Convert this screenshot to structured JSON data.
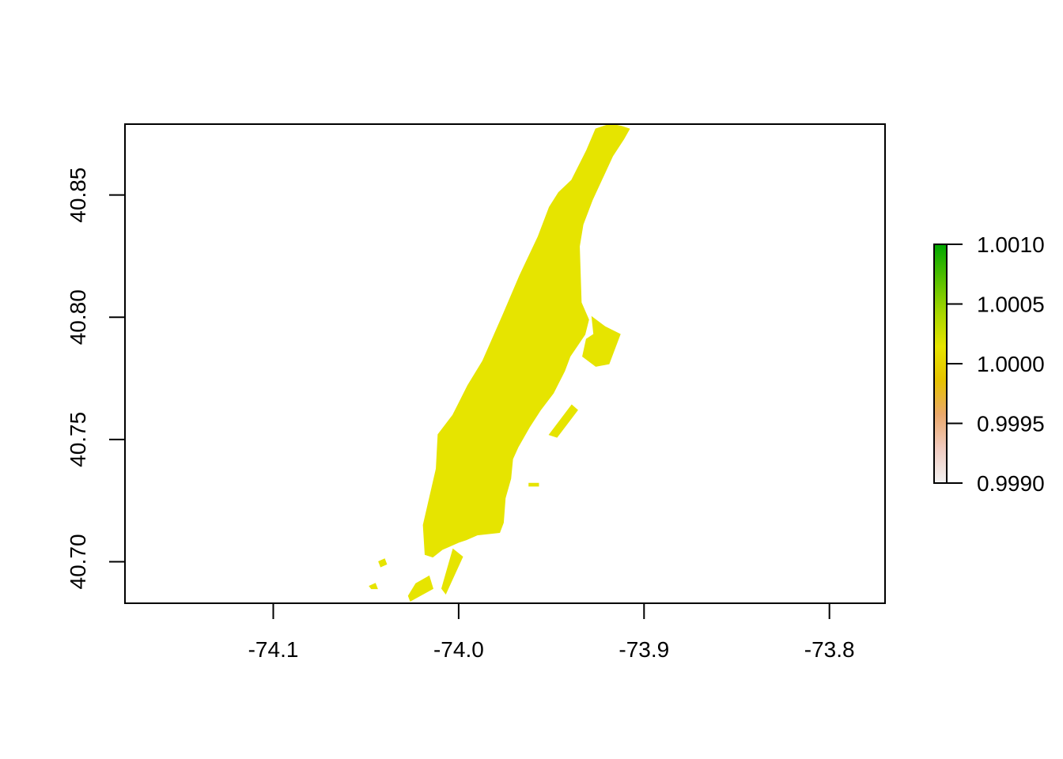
{
  "x_axis": {
    "ticks": [
      {
        "value": -74.1,
        "label": "-74.1"
      },
      {
        "value": -74.0,
        "label": "-74.0"
      },
      {
        "value": -73.9,
        "label": "-73.9"
      },
      {
        "value": -73.8,
        "label": "-73.8"
      }
    ],
    "range": [
      -74.18,
      -73.77
    ]
  },
  "y_axis": {
    "ticks": [
      {
        "value": 40.7,
        "label": "40.70"
      },
      {
        "value": 40.75,
        "label": "40.75"
      },
      {
        "value": 40.8,
        "label": "40.80"
      },
      {
        "value": 40.85,
        "label": "40.85"
      }
    ],
    "range": [
      40.683,
      40.879
    ]
  },
  "raster": {
    "fill_color": "#E6E400",
    "value": 1.0,
    "regions": [
      {
        "name": "manhattan",
        "coords": [
          [
            -73.912,
            40.878
          ],
          [
            -73.908,
            40.877
          ],
          [
            -73.911,
            40.873
          ],
          [
            -73.917,
            40.866
          ],
          [
            -73.928,
            40.848
          ],
          [
            -73.933,
            40.838
          ],
          [
            -73.935,
            40.829
          ],
          [
            -73.934,
            40.806
          ],
          [
            -73.93,
            40.799
          ],
          [
            -73.932,
            40.793
          ],
          [
            -73.94,
            40.784
          ],
          [
            -73.943,
            40.778
          ],
          [
            -73.949,
            40.769
          ],
          [
            -73.956,
            40.762
          ],
          [
            -73.962,
            40.755
          ],
          [
            -73.968,
            40.747
          ],
          [
            -73.971,
            40.742
          ],
          [
            -73.972,
            40.734
          ],
          [
            -73.975,
            40.726
          ],
          [
            -73.976,
            40.716
          ],
          [
            -73.978,
            40.712
          ],
          [
            -73.99,
            40.711
          ],
          [
            -73.996,
            40.709
          ],
          [
            -74.0,
            40.708
          ],
          [
            -74.009,
            40.705
          ],
          [
            -74.014,
            40.702
          ],
          [
            -74.018,
            40.703
          ],
          [
            -74.019,
            40.715
          ],
          [
            -74.012,
            40.738
          ],
          [
            -74.011,
            40.752
          ],
          [
            -74.003,
            40.76
          ],
          [
            -73.995,
            40.772
          ],
          [
            -73.987,
            40.782
          ],
          [
            -73.976,
            40.801
          ],
          [
            -73.967,
            40.817
          ],
          [
            -73.957,
            40.833
          ],
          [
            -73.951,
            40.845
          ],
          [
            -73.946,
            40.851
          ],
          [
            -73.939,
            40.856
          ],
          [
            -73.931,
            40.868
          ],
          [
            -73.926,
            40.877
          ],
          [
            -73.918,
            40.879
          ]
        ]
      },
      {
        "name": "roosevelt-island",
        "coords": [
          [
            -73.939,
            40.764
          ],
          [
            -73.951,
            40.752
          ],
          [
            -73.947,
            40.751
          ],
          [
            -73.936,
            40.762
          ]
        ]
      },
      {
        "name": "randalls-island",
        "coords": [
          [
            -73.928,
            40.8
          ],
          [
            -73.921,
            40.796
          ],
          [
            -73.913,
            40.793
          ],
          [
            -73.919,
            40.781
          ],
          [
            -73.926,
            40.78
          ],
          [
            -73.933,
            40.784
          ],
          [
            -73.931,
            40.791
          ],
          [
            -73.927,
            40.793
          ]
        ]
      },
      {
        "name": "governors-island",
        "coords": [
          [
            -74.026,
            40.684
          ],
          [
            -74.014,
            40.689
          ],
          [
            -74.016,
            40.694
          ],
          [
            -74.023,
            40.691
          ],
          [
            -74.027,
            40.686
          ]
        ]
      },
      {
        "name": "ellis-island",
        "coords": [
          [
            -74.042,
            40.698
          ],
          [
            -74.039,
            40.699
          ],
          [
            -74.04,
            40.701
          ],
          [
            -74.043,
            40.7
          ]
        ]
      },
      {
        "name": "liberty-island",
        "coords": [
          [
            -74.047,
            40.689
          ],
          [
            -74.044,
            40.689
          ],
          [
            -74.045,
            40.691
          ],
          [
            -74.048,
            40.69
          ]
        ]
      },
      {
        "name": "brooklyn-shore-sliver",
        "coords": [
          [
            -74.003,
            40.705
          ],
          [
            -73.998,
            40.702
          ],
          [
            -74.007,
            40.687
          ],
          [
            -74.009,
            40.689
          ]
        ]
      },
      {
        "name": "islet-east-river",
        "coords": [
          [
            -73.962,
            40.731
          ],
          [
            -73.957,
            40.731
          ],
          [
            -73.957,
            40.732
          ],
          [
            -73.962,
            40.732
          ]
        ]
      }
    ]
  },
  "legend": {
    "title": "",
    "labels": [
      {
        "value": 0.999,
        "label": "0.9990"
      },
      {
        "value": 0.9995,
        "label": "0.9995"
      },
      {
        "value": 1.0,
        "label": "1.0000"
      },
      {
        "value": 1.0005,
        "label": "1.0005"
      },
      {
        "value": 1.001,
        "label": "1.0010"
      }
    ],
    "range": [
      0.999,
      1.001
    ],
    "gradient_stops": [
      "#F2F2F2",
      "#F0CBC0",
      "#EAA86C",
      "#E6C200",
      "#E6E400",
      "#A6D600",
      "#54BF00",
      "#00A600"
    ]
  }
}
